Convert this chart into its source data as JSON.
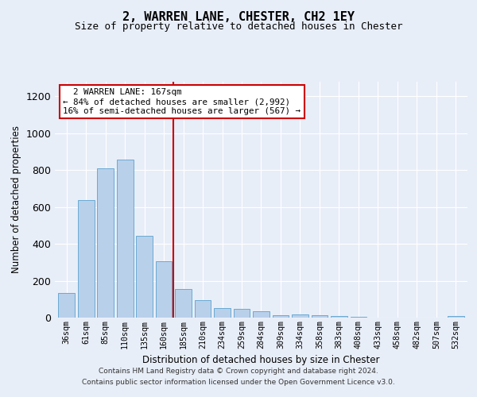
{
  "title": "2, WARREN LANE, CHESTER, CH2 1EY",
  "subtitle": "Size of property relative to detached houses in Chester",
  "xlabel": "Distribution of detached houses by size in Chester",
  "ylabel": "Number of detached properties",
  "footer_line1": "Contains HM Land Registry data © Crown copyright and database right 2024.",
  "footer_line2": "Contains public sector information licensed under the Open Government Licence v3.0.",
  "annotation_line1": "  2 WARREN LANE: 167sqm  ",
  "annotation_line2": "← 84% of detached houses are smaller (2,992)",
  "annotation_line3": "16% of semi-detached houses are larger (567) →",
  "property_size": 167,
  "bin_labels": [
    "36sqm",
    "61sqm",
    "85sqm",
    "110sqm",
    "135sqm",
    "160sqm",
    "185sqm",
    "210sqm",
    "234sqm",
    "259sqm",
    "284sqm",
    "309sqm",
    "334sqm",
    "358sqm",
    "383sqm",
    "408sqm",
    "433sqm",
    "458sqm",
    "482sqm",
    "507sqm",
    "532sqm"
  ],
  "bar_heights": [
    132,
    638,
    808,
    858,
    445,
    305,
    155,
    95,
    50,
    48,
    35,
    15,
    18,
    15,
    10,
    3,
    0,
    0,
    0,
    0,
    10
  ],
  "bar_color": "#b8d0ea",
  "bar_edge_color": "#6aaad4",
  "vline_color": "#cc0000",
  "annotation_box_color": "#cc0000",
  "ylim": [
    0,
    1280
  ],
  "yticks": [
    0,
    200,
    400,
    600,
    800,
    1000,
    1200
  ],
  "background_color": "#e8eef8",
  "grid_color": "#ffffff",
  "title_fontsize": 11,
  "subtitle_fontsize": 9
}
